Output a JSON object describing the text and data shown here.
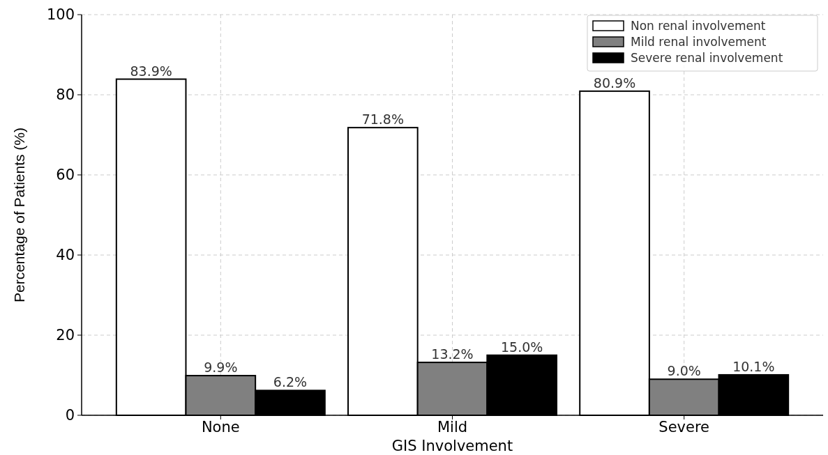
{
  "chart_data": {
    "type": "bar",
    "xlabel": "GIS Involvement",
    "ylabel": "Percentage of Patients (%)",
    "categories": [
      "None",
      "Mild",
      "Severe"
    ],
    "series": [
      {
        "name": "Non renal involvement",
        "color": "#ffffff",
        "values": [
          83.9,
          71.8,
          80.9
        ],
        "value_labels": [
          "83.9%",
          "71.8%",
          "80.9%"
        ]
      },
      {
        "name": "Mild renal involvement",
        "color": "#808080",
        "values": [
          9.9,
          13.2,
          9.0
        ],
        "value_labels": [
          "9.9%",
          "13.2%",
          "9.0%"
        ]
      },
      {
        "name": "Severe renal involvement",
        "color": "#000000",
        "values": [
          6.2,
          15.0,
          10.1
        ],
        "value_labels": [
          "6.2%",
          "15.0%",
          "10.1%"
        ]
      }
    ],
    "ylim": [
      0,
      100
    ],
    "yticks": [
      0,
      20,
      40,
      60,
      80,
      100
    ],
    "grid": true,
    "legend": "top right"
  }
}
